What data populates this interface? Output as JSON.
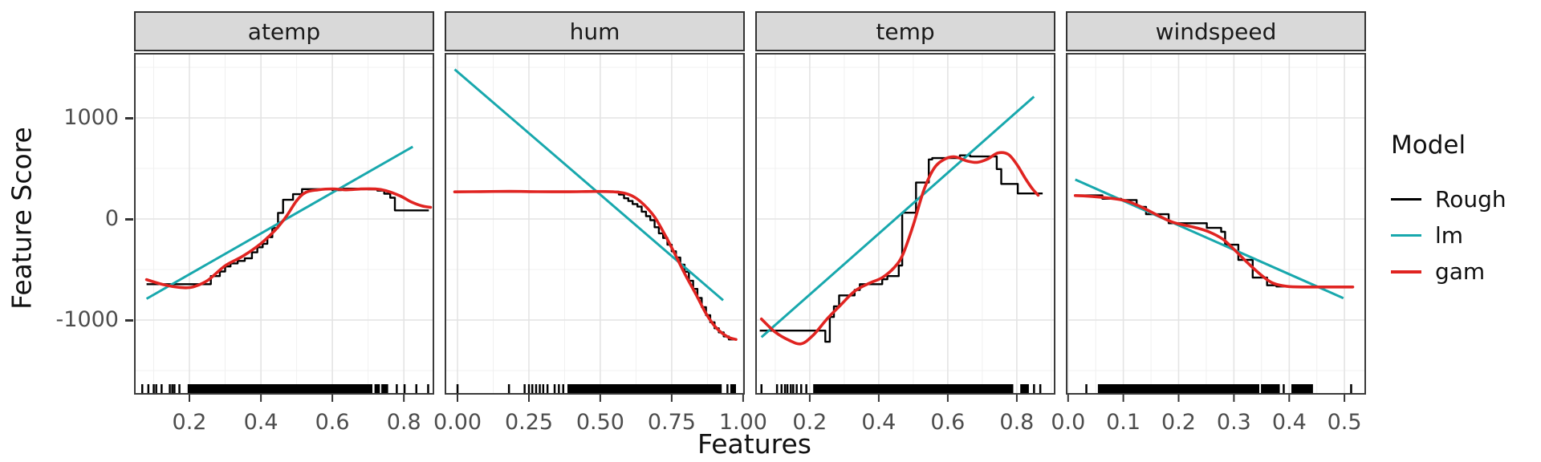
{
  "chart_data": {
    "type": "line",
    "title": "",
    "xlabel": "Features",
    "ylabel": "Feature Score",
    "ylim": [
      -1740,
      1640
    ],
    "y_ticks": [
      1000,
      0,
      -1000
    ],
    "y_tick_labels": [
      "1000",
      "0",
      "-1000"
    ],
    "grid": {
      "h_major": [
        1000,
        0,
        -1000
      ],
      "h_minor": [
        1500,
        500,
        -500,
        -1500
      ],
      "grid_on": true
    },
    "legend": {
      "title": "Model",
      "position": "right",
      "entries": [
        {
          "label": "Rough",
          "key": "rough",
          "color": "#000000"
        },
        {
          "label": "lm",
          "key": "lm",
          "color": "#18A8AD"
        },
        {
          "label": "gam",
          "key": "gam",
          "color": "#E02421"
        }
      ]
    },
    "facets": [
      {
        "label": "atemp",
        "xlim": [
          0.045,
          0.885
        ],
        "x_ticks": [
          0.2,
          0.4,
          0.6,
          0.8
        ],
        "x_tick_labels": [
          "0.2",
          "0.4",
          "0.6",
          "0.8"
        ],
        "x_minor": [
          0.1,
          0.3,
          0.5,
          0.7
        ],
        "series": {
          "lm": [
            [
              0.08,
              -790
            ],
            [
              0.825,
              715
            ]
          ],
          "gam": [
            [
              0.08,
              -600
            ],
            [
              0.125,
              -648
            ],
            [
              0.175,
              -678
            ],
            [
              0.21,
              -672
            ],
            [
              0.25,
              -610
            ],
            [
              0.3,
              -463
            ],
            [
              0.35,
              -367
            ],
            [
              0.4,
              -243
            ],
            [
              0.44,
              -110
            ],
            [
              0.47,
              20
            ],
            [
              0.5,
              180
            ],
            [
              0.525,
              262
            ],
            [
              0.56,
              288
            ],
            [
              0.6,
              298
            ],
            [
              0.64,
              288
            ],
            [
              0.68,
              297
            ],
            [
              0.72,
              297
            ],
            [
              0.75,
              280
            ],
            [
              0.79,
              228
            ],
            [
              0.82,
              170
            ],
            [
              0.85,
              130
            ],
            [
              0.875,
              115
            ]
          ],
          "rough": [
            [
              0.08,
              -645
            ],
            [
              0.26,
              -565
            ],
            [
              0.285,
              -520
            ],
            [
              0.3,
              -470
            ],
            [
              0.315,
              -440
            ],
            [
              0.335,
              -415
            ],
            [
              0.355,
              -390
            ],
            [
              0.375,
              -330
            ],
            [
              0.39,
              -280
            ],
            [
              0.405,
              -245
            ],
            [
              0.418,
              -180
            ],
            [
              0.432,
              -90
            ],
            [
              0.448,
              60
            ],
            [
              0.462,
              190
            ],
            [
              0.49,
              245
            ],
            [
              0.515,
              295
            ],
            [
              0.6,
              285
            ],
            [
              0.625,
              300
            ],
            [
              0.7,
              293
            ],
            [
              0.726,
              280
            ],
            [
              0.745,
              250
            ],
            [
              0.762,
              210
            ],
            [
              0.775,
              85
            ],
            [
              0.87,
              85
            ]
          ]
        },
        "rug": {
          "bands": [
            [
              0.195,
              0.712
            ],
            [
              0.718,
              0.733
            ],
            [
              0.737,
              0.756
            ]
          ],
          "ticks": [
            0.068,
            0.085,
            0.1,
            0.107,
            0.122,
            0.145,
            0.152,
            0.158,
            0.172,
            0.78,
            0.802,
            0.835,
            0.868
          ]
        }
      },
      {
        "label": "hum",
        "xlim": [
          -0.045,
          1.006
        ],
        "x_ticks": [
          0,
          0.25,
          0.5,
          0.75,
          1.0
        ],
        "x_tick_labels": [
          "0.00",
          "0.25",
          "0.50",
          "0.75",
          "1.00"
        ],
        "x_minor": [
          0.125,
          0.375,
          0.625,
          0.875
        ],
        "series": {
          "lm": [
            [
              -0.01,
              1480
            ],
            [
              0.93,
              -805
            ]
          ],
          "gam": [
            [
              -0.01,
              268
            ],
            [
              0.08,
              271
            ],
            [
              0.18,
              273
            ],
            [
              0.28,
              270
            ],
            [
              0.38,
              269
            ],
            [
              0.48,
              272
            ],
            [
              0.545,
              269
            ],
            [
              0.585,
              255
            ],
            [
              0.62,
              215
            ],
            [
              0.655,
              135
            ],
            [
              0.69,
              20
            ],
            [
              0.725,
              -150
            ],
            [
              0.76,
              -340
            ],
            [
              0.8,
              -565
            ],
            [
              0.835,
              -745
            ],
            [
              0.87,
              -935
            ],
            [
              0.905,
              -1075
            ],
            [
              0.945,
              -1165
            ],
            [
              0.975,
              -1192
            ]
          ],
          "rough": [
            [
              -0.01,
              270
            ],
            [
              0.565,
              242
            ],
            [
              0.583,
              205
            ],
            [
              0.598,
              178
            ],
            [
              0.613,
              148
            ],
            [
              0.63,
              122
            ],
            [
              0.645,
              72
            ],
            [
              0.66,
              28
            ],
            [
              0.675,
              -12
            ],
            [
              0.69,
              -82
            ],
            [
              0.705,
              -142
            ],
            [
              0.72,
              -188
            ],
            [
              0.735,
              -255
            ],
            [
              0.75,
              -320
            ],
            [
              0.765,
              -382
            ],
            [
              0.78,
              -452
            ],
            [
              0.795,
              -522
            ],
            [
              0.81,
              -612
            ],
            [
              0.825,
              -692
            ],
            [
              0.84,
              -782
            ],
            [
              0.855,
              -872
            ],
            [
              0.87,
              -952
            ],
            [
              0.885,
              -1022
            ],
            [
              0.9,
              -1082
            ],
            [
              0.915,
              -1122
            ],
            [
              0.932,
              -1162
            ],
            [
              0.95,
              -1192
            ],
            [
              0.975,
              -1192
            ]
          ]
        },
        "rug": {
          "bands": [
            [
              0.385,
              0.925
            ],
            [
              0.955,
              0.975
            ]
          ],
          "ticks": [
            0.0,
            0.18,
            0.235,
            0.25,
            0.262,
            0.275,
            0.288,
            0.3,
            0.315,
            0.34,
            0.355,
            0.37,
            0.945
          ]
        }
      },
      {
        "label": "temp",
        "xlim": [
          0.042,
          0.912
        ],
        "x_ticks": [
          0.2,
          0.4,
          0.6,
          0.8
        ],
        "x_tick_labels": [
          "0.2",
          "0.4",
          "0.6",
          "0.8"
        ],
        "x_minor": [
          0.1,
          0.3,
          0.5,
          0.7,
          0.9
        ],
        "series": {
          "lm": [
            [
              0.06,
              -1170
            ],
            [
              0.85,
              1210
            ]
          ],
          "gam": [
            [
              0.06,
              -990
            ],
            [
              0.1,
              -1120
            ],
            [
              0.14,
              -1200
            ],
            [
              0.175,
              -1235
            ],
            [
              0.21,
              -1150
            ],
            [
              0.25,
              -990
            ],
            [
              0.29,
              -850
            ],
            [
              0.33,
              -715
            ],
            [
              0.37,
              -640
            ],
            [
              0.41,
              -580
            ],
            [
              0.445,
              -480
            ],
            [
              0.47,
              -350
            ],
            [
              0.5,
              -60
            ],
            [
              0.53,
              280
            ],
            [
              0.56,
              500
            ],
            [
              0.59,
              590
            ],
            [
              0.62,
              615
            ],
            [
              0.655,
              575
            ],
            [
              0.685,
              560
            ],
            [
              0.715,
              592
            ],
            [
              0.745,
              652
            ],
            [
              0.775,
              640
            ],
            [
              0.8,
              540
            ],
            [
              0.825,
              400
            ],
            [
              0.845,
              300
            ],
            [
              0.862,
              235
            ]
          ],
          "rough": [
            [
              0.055,
              -1105
            ],
            [
              0.245,
              -1215
            ],
            [
              0.258,
              -970
            ],
            [
              0.27,
              -865
            ],
            [
              0.285,
              -756
            ],
            [
              0.33,
              -702
            ],
            [
              0.345,
              -645
            ],
            [
              0.41,
              -597
            ],
            [
              0.425,
              -565
            ],
            [
              0.458,
              -460
            ],
            [
              0.468,
              62
            ],
            [
              0.508,
              360
            ],
            [
              0.545,
              589
            ],
            [
              0.555,
              602
            ],
            [
              0.635,
              629
            ],
            [
              0.665,
              618
            ],
            [
              0.742,
              494
            ],
            [
              0.755,
              347
            ],
            [
              0.803,
              252
            ],
            [
              0.875,
              252
            ]
          ]
        },
        "rug": {
          "bands": [
            [
              0.21,
              0.79
            ],
            [
              0.81,
              0.835
            ]
          ],
          "ticks": [
            0.06,
            0.105,
            0.118,
            0.128,
            0.135,
            0.145,
            0.152,
            0.162,
            0.175,
            0.19,
            0.85,
            0.868
          ]
        }
      },
      {
        "label": "windspeed",
        "xlim": [
          -0.004,
          0.539
        ],
        "x_ticks": [
          0,
          0.1,
          0.2,
          0.3,
          0.4,
          0.5
        ],
        "x_tick_labels": [
          "0.0",
          "0.1",
          "0.2",
          "0.3",
          "0.4",
          "0.5"
        ],
        "x_minor": [
          0.05,
          0.15,
          0.25,
          0.35,
          0.45
        ],
        "series": {
          "lm": [
            [
              0.013,
              390
            ],
            [
              0.498,
              -783
            ]
          ],
          "gam": [
            [
              0.013,
              232
            ],
            [
              0.05,
              220
            ],
            [
              0.1,
              186
            ],
            [
              0.13,
              125
            ],
            [
              0.16,
              42
            ],
            [
              0.19,
              -33
            ],
            [
              0.23,
              -85
            ],
            [
              0.255,
              -128
            ],
            [
              0.28,
              -200
            ],
            [
              0.3,
              -300
            ],
            [
              0.325,
              -435
            ],
            [
              0.35,
              -558
            ],
            [
              0.37,
              -633
            ],
            [
              0.395,
              -666
            ],
            [
              0.43,
              -673
            ],
            [
              0.515,
              -673
            ]
          ],
          "rough": [
            [
              0.013,
              233
            ],
            [
              0.062,
              200
            ],
            [
              0.096,
              187
            ],
            [
              0.124,
              120
            ],
            [
              0.141,
              47
            ],
            [
              0.182,
              -42
            ],
            [
              0.251,
              -88
            ],
            [
              0.277,
              -127
            ],
            [
              0.284,
              -255
            ],
            [
              0.308,
              -405
            ],
            [
              0.334,
              -580
            ],
            [
              0.36,
              -656
            ],
            [
              0.377,
              -668
            ],
            [
              0.45,
              -668
            ]
          ]
        },
        "rug": {
          "bands": [
            [
              0.054,
              0.346
            ],
            [
              0.349,
              0.383
            ],
            [
              0.404,
              0.443
            ]
          ],
          "ticks": [
            0.033,
            0.39,
            0.512
          ]
        }
      }
    ]
  }
}
